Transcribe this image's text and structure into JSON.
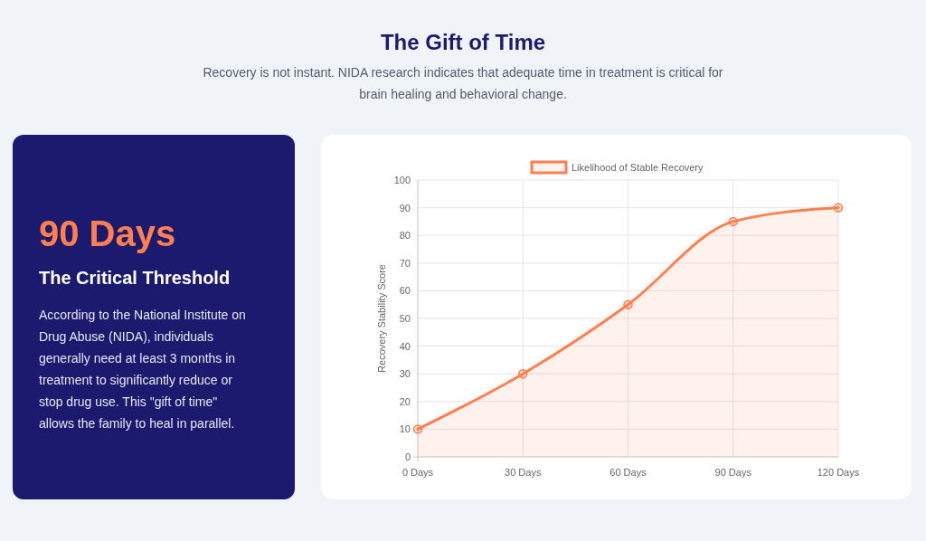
{
  "chart_data": [
    {
      "type": "other",
      "title": "90 Days",
      "subtitle": "The Critical Threshold",
      "annotations": [
        "According to the National Institute on Drug Abuse (NIDA), individuals generally need at least 3 months in treatment to significantly reduce or stop drug use. This \"gift of time\" allows the family to heal in parallel."
      ]
    },
    {
      "type": "area",
      "title": "The Gift of Time",
      "subtitle": "Recovery is not instant. NIDA research indicates that adequate time in treatment is critical for brain healing and behavioral change.",
      "ylabel": "Recovery Stability Score",
      "categories": [
        "0 Days",
        "30 Days",
        "60 Days",
        "90 Days",
        "120 Days"
      ],
      "series": [
        {
          "name": "Likelihood of Stable Recovery",
          "color": "#ff7f50",
          "values": [
            10,
            30,
            55,
            85,
            90
          ]
        }
      ],
      "ylim": [
        0,
        100
      ],
      "yticks": [
        0,
        10,
        20,
        30,
        40,
        50,
        60,
        70,
        80,
        90,
        100
      ],
      "grid": true,
      "legend": "top",
      "marker": "circle"
    }
  ]
}
